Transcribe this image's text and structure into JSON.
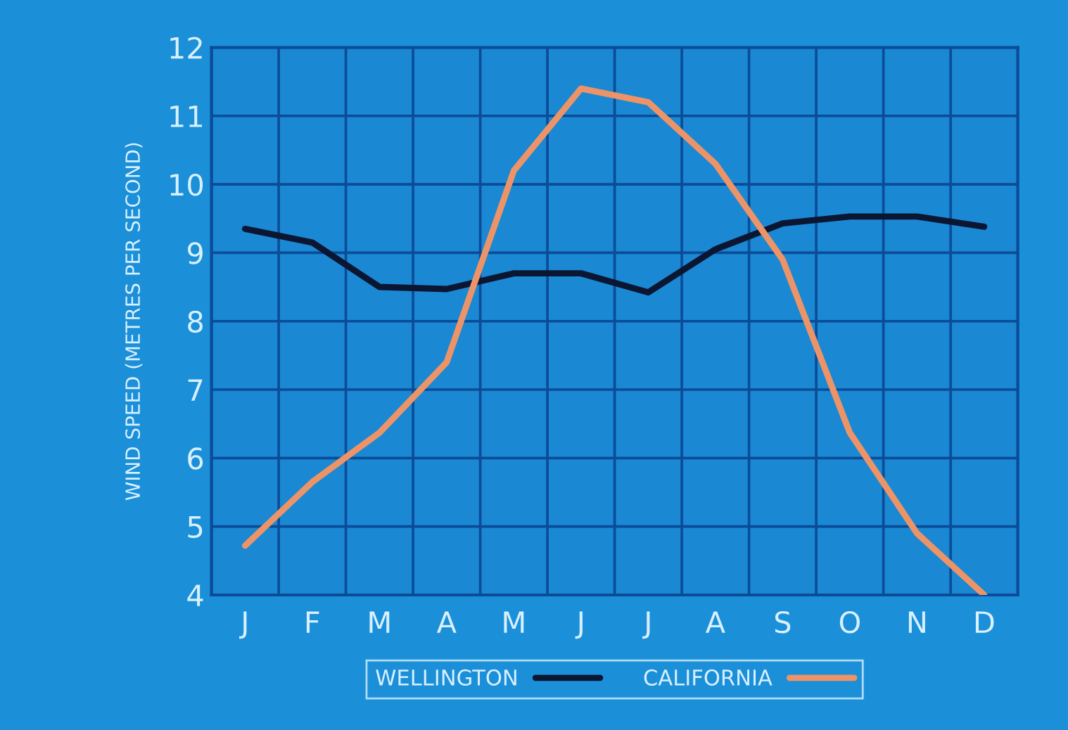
{
  "chart_data": {
    "type": "line",
    "ylabel": "WIND SPEED (METRES PER SECOND)",
    "categories": [
      "J",
      "F",
      "M",
      "A",
      "M",
      "J",
      "J",
      "A",
      "S",
      "O",
      "N",
      "D"
    ],
    "series": [
      {
        "name": "WELLINGTON",
        "color": "#0b1633",
        "values": [
          9.35,
          9.15,
          8.5,
          8.47,
          8.7,
          8.7,
          8.42,
          9.05,
          9.43,
          9.53,
          9.53,
          9.38
        ]
      },
      {
        "name": "CALIFORNIA",
        "color": "#ec9468",
        "values": [
          4.72,
          5.65,
          6.37,
          7.4,
          10.2,
          11.4,
          11.2,
          10.3,
          8.9,
          6.37,
          4.9,
          4.0
        ]
      }
    ],
    "ylim": [
      4,
      12
    ],
    "yticks": [
      4,
      5,
      6,
      7,
      8,
      9,
      10,
      11,
      12
    ],
    "grid": true,
    "legend": "bottom",
    "marker": "none",
    "line_style": "solid"
  }
}
